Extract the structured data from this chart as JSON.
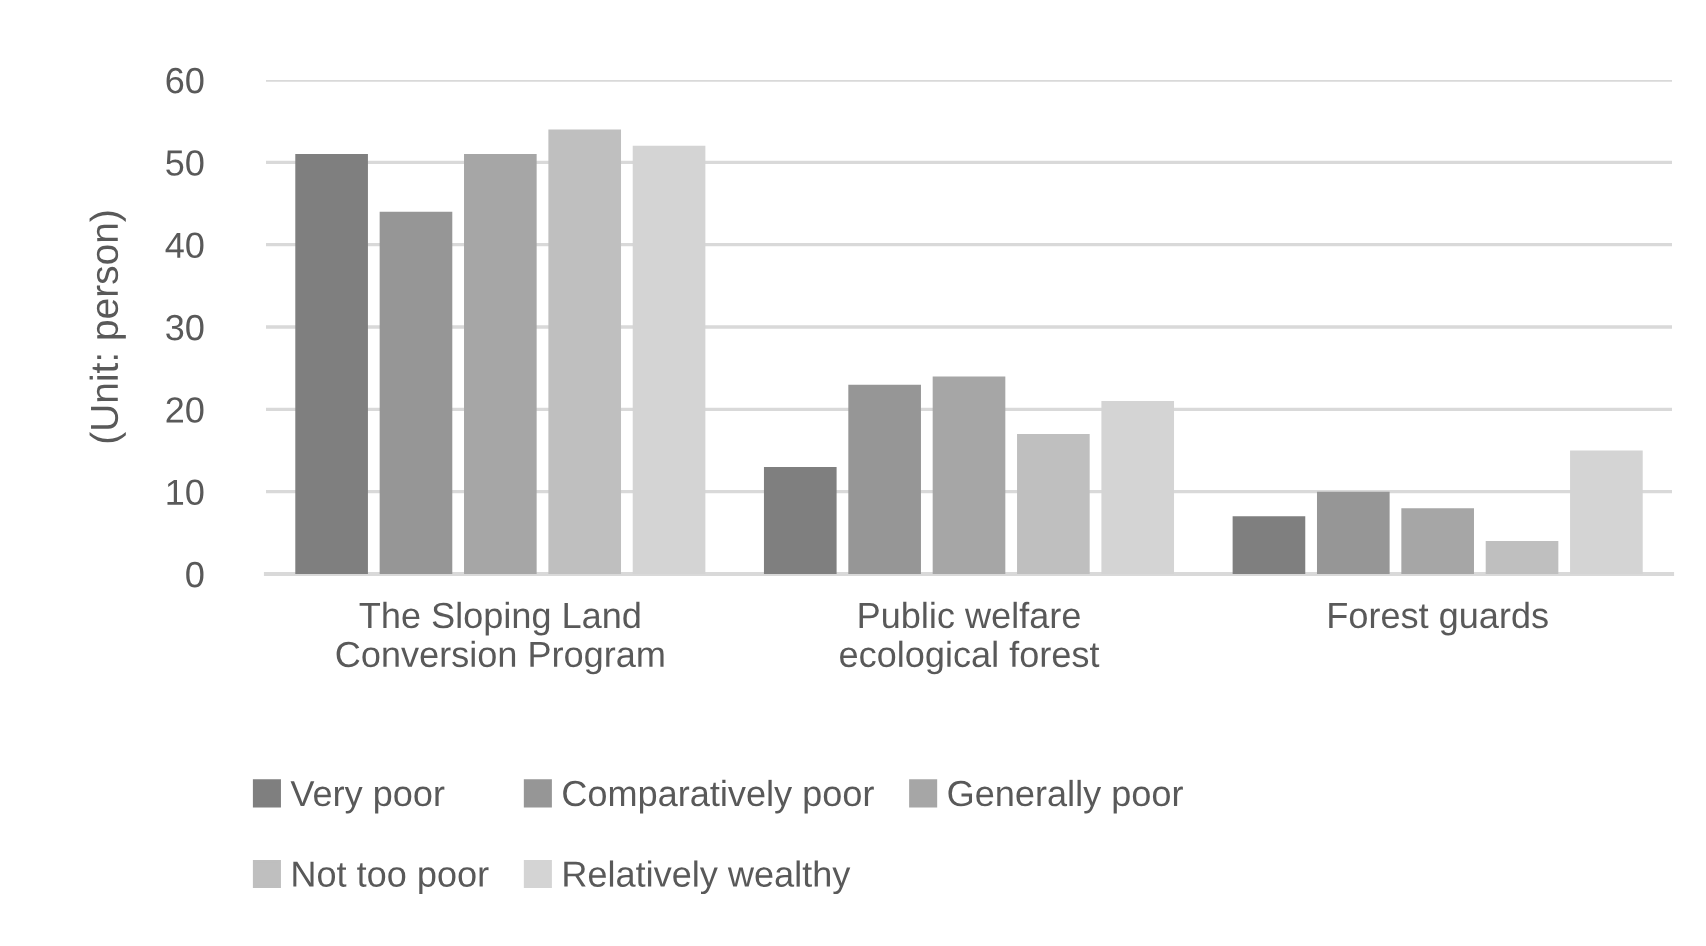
{
  "chart_data": {
    "type": "bar",
    "ylabel": "(Unit: person)",
    "categories": [
      "The Sloping Land\nConversion Program",
      "Public welfare\necological forest",
      "Forest guards"
    ],
    "series": [
      {
        "name": "Very poor",
        "color": "#7f7f7f",
        "values": [
          51,
          13,
          7
        ]
      },
      {
        "name": "Comparatively poor",
        "color": "#969696",
        "values": [
          44,
          23,
          10
        ]
      },
      {
        "name": "Generally poor",
        "color": "#a6a6a6",
        "values": [
          51,
          24,
          8
        ]
      },
      {
        "name": "Not too poor",
        "color": "#bfbfbf",
        "values": [
          54,
          17,
          4
        ]
      },
      {
        "name": "Relatively wealthy",
        "color": "#d4d4d4",
        "values": [
          52,
          21,
          15
        ]
      }
    ],
    "ylim": [
      0,
      60
    ],
    "yticks": [
      0,
      10,
      20,
      30,
      40,
      50,
      60
    ],
    "grid": "y",
    "legend": "bottom"
  }
}
